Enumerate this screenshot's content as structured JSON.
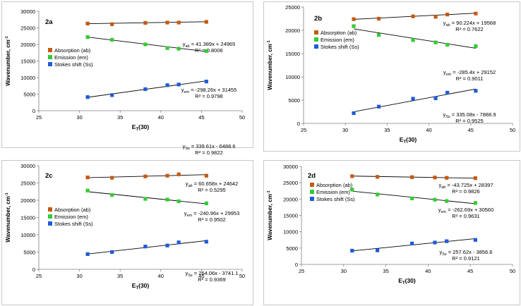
{
  "chart_data": [
    {
      "type": "scatter",
      "panel_label": "2a",
      "xlabel_main": "E",
      "xlabel_sub": "T",
      "xlabel_tail": "(30)",
      "ylabel_main": "Wavenumber, cm",
      "ylabel_sup": "-1",
      "xlim": [
        25,
        50
      ],
      "ylim": [
        0,
        30000
      ],
      "xticks": [
        25,
        30,
        35,
        40,
        45,
        50
      ],
      "yticks": [
        0,
        5000,
        10000,
        15000,
        20000,
        25000,
        30000
      ],
      "legend": [
        "Absorption (ab)",
        "Emission (em)",
        "Stokes shift (Ss)"
      ],
      "x": [
        31.0,
        34.0,
        38.1,
        40.8,
        42.2,
        45.6
      ],
      "series": [
        {
          "name": "Absorption (ab)",
          "color": "#c55a11",
          "values": [
            26300,
            26100,
            26500,
            26600,
            26600,
            26800
          ],
          "fit": [
            41.389,
            24965
          ],
          "eq_y": "y",
          "eq_sub": "ab",
          "eq_rest": " = 41.389x + 24965",
          "r2": "R² = 0.8006"
        },
        {
          "name": "Emission (em)",
          "color": "#33cc33",
          "values": [
            22200,
            21400,
            20000,
            18900,
            18700,
            18000
          ],
          "fit": [
            -298.26,
            31455
          ],
          "eq_y": "y",
          "eq_sub": "em",
          "eq_rest": " = -298.26x + 31455",
          "r2": "R² = 0.9798"
        },
        {
          "name": "Stokes shift (Ss)",
          "color": "#1f5bd8",
          "values": [
            4100,
            4700,
            6500,
            7700,
            7900,
            8800
          ],
          "fit": [
            339.61,
            -6488.6
          ],
          "eq_y": "y",
          "eq_sub": "Ss",
          "eq_rest": " = 339.61x - 6488.6",
          "r2": "R² = 0.9822"
        }
      ]
    },
    {
      "type": "scatter",
      "panel_label": "2b",
      "xlabel_main": "E",
      "xlabel_sub": "T",
      "xlabel_tail": "(30)",
      "ylabel_main": "Wavenumber, cm",
      "ylabel_sup": "-1",
      "xlim": [
        25,
        50
      ],
      "ylim": [
        0,
        25000
      ],
      "xticks": [
        25,
        30,
        35,
        40,
        45,
        50
      ],
      "yticks": [
        0,
        5000,
        10000,
        15000,
        20000,
        25000
      ],
      "legend": [
        "Absorption (ab)",
        "Emission (em)",
        "Stokes shift (Ss)"
      ],
      "x": [
        31.0,
        34.0,
        38.1,
        40.8,
        42.2,
        45.6
      ],
      "series": [
        {
          "name": "Absorption (ab)",
          "color": "#c55a11",
          "values": [
            22400,
            22500,
            23000,
            22900,
            23400,
            23600
          ],
          "fit": [
            90.224,
            19568
          ],
          "eq_y": "y",
          "eq_sub": "ab",
          "eq_rest": " = 90.224x + 19568",
          "r2": "R² = 0.7622"
        },
        {
          "name": "Emission (em)",
          "color": "#33cc33",
          "values": [
            20900,
            19000,
            17900,
            17400,
            16900,
            16600
          ],
          "fit": [
            -285.4,
            29152
          ],
          "eq_y": "y",
          "eq_sub": "em",
          "eq_rest": " = -285.4x + 29152",
          "r2": "R² = 0.9011"
        },
        {
          "name": "Stokes shift (Ss)",
          "color": "#1f5bd8",
          "values": [
            2200,
            3600,
            5300,
            5400,
            6600,
            7000
          ],
          "fit": [
            335.08,
            -7888.9
          ],
          "eq_y": "y",
          "eq_sub": "Ss",
          "eq_rest": " = 335.08x - 7888.9",
          "r2": "R² = 0.9525"
        }
      ]
    },
    {
      "type": "scatter",
      "panel_label": "2c",
      "xlabel_main": "E",
      "xlabel_sub": "T",
      "xlabel_tail": "(30)",
      "ylabel_main": "Wavenumber, cm",
      "ylabel_sup": "-1",
      "xlim": [
        25,
        50
      ],
      "ylim": [
        0,
        30000
      ],
      "xticks": [
        25,
        30,
        35,
        40,
        45,
        50
      ],
      "yticks": [
        0,
        5000,
        10000,
        15000,
        20000,
        25000,
        30000
      ],
      "legend": [
        "Absorption (ab)",
        "Emission (em)",
        "Stokes shift (Ss)"
      ],
      "x": [
        31.0,
        34.0,
        38.1,
        40.8,
        42.2,
        45.6
      ],
      "series": [
        {
          "name": "Absorption (ab)",
          "color": "#c55a11",
          "values": [
            26600,
            26500,
            26900,
            27100,
            27500,
            27100
          ],
          "fit": [
            60.658,
            24642
          ],
          "eq_y": "y",
          "eq_sub": "ab",
          "eq_rest": " = 60.658x + 24642",
          "r2": "R² = 0.5295"
        },
        {
          "name": "Emission (em)",
          "color": "#33cc33",
          "values": [
            22800,
            21500,
            20400,
            20200,
            19700,
            19100
          ],
          "fit": [
            -240.96,
            29953
          ],
          "eq_y": "y",
          "eq_sub": "em",
          "eq_rest": " = -240.96x + 29953",
          "r2": "R² = 0.9502"
        },
        {
          "name": "Stokes shift (Ss)",
          "color": "#1f5bd8",
          "values": [
            4400,
            5000,
            6600,
            6900,
            7800,
            8000
          ],
          "fit": [
            264.06,
            -3741.1
          ],
          "eq_y": "y",
          "eq_sub": "Ss",
          "eq_rest": " = 264.06x - 3741.1",
          "r2": "R² = 0.9369"
        }
      ]
    },
    {
      "type": "scatter",
      "panel_label": "2d",
      "xlabel_main": "E",
      "xlabel_sub": "T",
      "xlabel_tail": "(30)",
      "ylabel_main": "Wavenumber, cm",
      "ylabel_sup": "-1",
      "xlim": [
        25,
        50
      ],
      "ylim": [
        0,
        30000
      ],
      "xticks": [
        25,
        30,
        35,
        40,
        45,
        50
      ],
      "yticks": [
        0,
        5000,
        10000,
        15000,
        20000,
        25000,
        30000
      ],
      "legend": [
        "Absorption (ab)",
        "Emission (em)",
        "Stokes shift (Ss)"
      ],
      "x": [
        31.0,
        34.0,
        38.1,
        40.8,
        42.2,
        45.6
      ],
      "series": [
        {
          "name": "Absorption (ab)",
          "color": "#c55a11",
          "values": [
            27000,
            26800,
            26700,
            26600,
            26500,
            26400
          ],
          "fit": [
            -43.725,
            28397
          ],
          "eq_y": "y",
          "eq_sub": "ab",
          "eq_rest": " = -43.725x + 28397",
          "r2": "R² = 0.9826"
        },
        {
          "name": "Emission (em)",
          "color": "#33cc33",
          "values": [
            22900,
            21400,
            20200,
            19800,
            19400,
            18800
          ],
          "fit": [
            -262.69,
            30560
          ],
          "eq_y": "y",
          "eq_sub": "em",
          "eq_rest": " = -262.69x + 30560",
          "r2": "R² = 0.9631"
        },
        {
          "name": "Stokes shift (Ss)",
          "color": "#1f5bd8",
          "values": [
            4200,
            4300,
            6400,
            6700,
            7100,
            7500
          ],
          "fit": [
            257.62,
            -3856.6
          ],
          "eq_y": "y",
          "eq_sub": "Ss",
          "eq_rest": " = 257.62x - 3856.6",
          "r2": "R² = 0.9121"
        }
      ]
    }
  ]
}
